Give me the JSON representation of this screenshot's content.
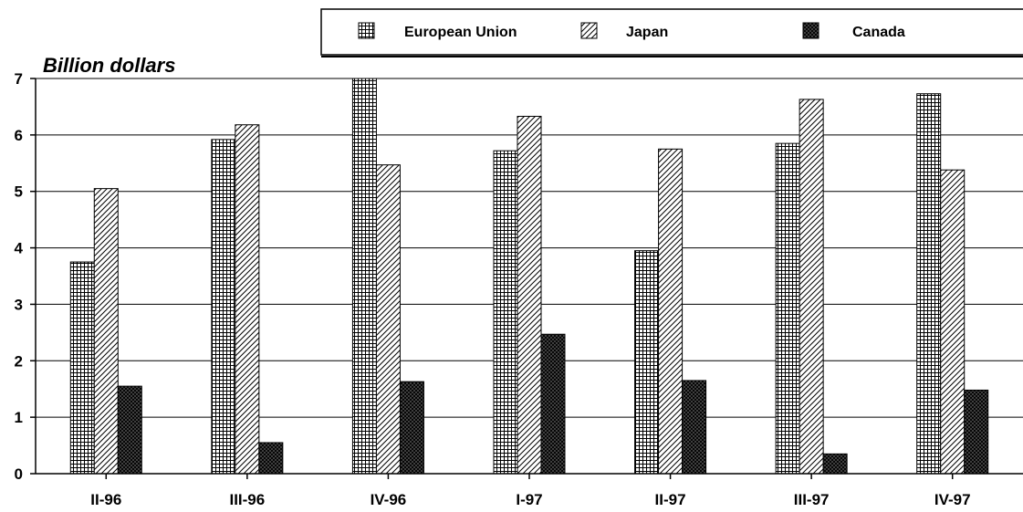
{
  "chart_data": {
    "type": "bar",
    "title": "",
    "xlabel": "",
    "ylabel": "Billion dollars",
    "ylim": [
      0,
      7
    ],
    "yticks": [
      "0",
      "1",
      "2",
      "3",
      "4",
      "5",
      "6",
      "7"
    ],
    "grid": true,
    "legend_position": "top-right",
    "categories": [
      "II-96",
      "III-96",
      "IV-96",
      "I-97",
      "II-97",
      "III-97",
      "IV-97"
    ],
    "series": [
      {
        "name": "European Union",
        "pattern": "grid",
        "color": "#000000",
        "values": [
          3.75,
          5.92,
          7.0,
          5.72,
          3.95,
          5.85,
          6.73
        ]
      },
      {
        "name": "Japan",
        "pattern": "diagonal",
        "color": "#000000",
        "values": [
          5.05,
          6.18,
          5.47,
          6.33,
          5.75,
          6.63,
          5.38
        ]
      },
      {
        "name": "Canada",
        "pattern": "crosshatch",
        "color": "#000000",
        "values": [
          1.55,
          0.55,
          1.63,
          2.47,
          1.65,
          0.35,
          1.48
        ]
      }
    ]
  }
}
